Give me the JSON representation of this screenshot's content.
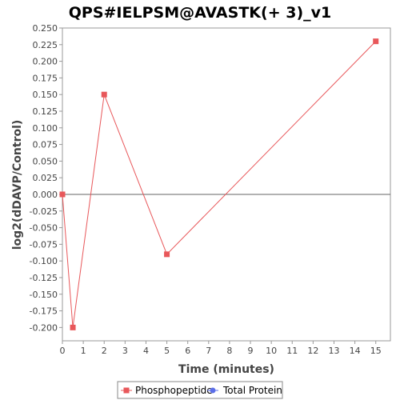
{
  "chart_data": {
    "type": "line",
    "title": "QPS#IELPSM@AVASTK(+ 3)_v1",
    "xlabel": "Time (minutes)",
    "ylabel": "log2(dDAVP/Control)",
    "xlim": [
      0,
      15.7
    ],
    "ylim": [
      -0.22,
      0.25
    ],
    "x_ticks": [
      0,
      1,
      2,
      3,
      4,
      5,
      6,
      7,
      8,
      9,
      10,
      11,
      12,
      13,
      14,
      15
    ],
    "y_ticks": [
      0.25,
      0.225,
      0.2,
      0.175,
      0.15,
      0.125,
      0.1,
      0.075,
      0.05,
      0.025,
      0.0,
      -0.025,
      -0.05,
      -0.075,
      -0.1,
      -0.125,
      -0.15,
      -0.175,
      -0.2
    ],
    "y_tick_labels": [
      "0.250",
      "0.225",
      "0.200",
      "0.175",
      "0.150",
      "0.125",
      "0.100",
      "0.075",
      "0.050",
      "0.025",
      "0.000",
      "-0.025",
      "-0.050",
      "-0.075",
      "-0.100",
      "-0.125",
      "-0.150",
      "-0.175",
      "-0.200"
    ],
    "grid": false,
    "zero_line": true,
    "legend_position": "bottom",
    "series": [
      {
        "name": "Phosphopeptide",
        "color": "#e8575a",
        "marker": "square",
        "x": [
          0,
          0.5,
          2,
          5,
          15
        ],
        "y": [
          0.0,
          -0.2,
          0.15,
          -0.09,
          0.23
        ]
      },
      {
        "name": "Total Protein",
        "color": "#5b6ee8",
        "marker": "circle",
        "x": [],
        "y": []
      }
    ]
  }
}
